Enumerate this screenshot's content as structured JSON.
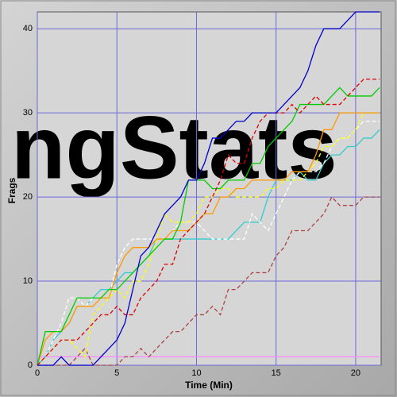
{
  "chart_data": {
    "type": "line",
    "watermark": "ngStats",
    "xlabel": "Time (Min)",
    "ylabel": "Frags",
    "xlim": [
      0,
      21.6
    ],
    "ylim": [
      0,
      42
    ],
    "xticks": [
      0,
      5,
      10,
      15,
      20
    ],
    "yticks": [
      0,
      10,
      20,
      30,
      40
    ],
    "grid": true,
    "x": [
      0,
      0.5,
      1,
      1.5,
      2,
      2.5,
      3,
      3.5,
      4,
      4.5,
      5,
      5.5,
      6,
      6.5,
      7,
      7.5,
      8,
      8.5,
      9,
      9.5,
      10,
      10.5,
      11,
      11.5,
      12,
      12.5,
      13,
      13.5,
      14,
      14.5,
      15,
      15.5,
      16,
      16.5,
      17,
      17.5,
      18,
      18.5,
      19,
      19.5,
      20,
      20.5,
      21,
      21.5
    ],
    "series": [
      {
        "color": "#ff88ff",
        "dash": false,
        "values": [
          1,
          1,
          1,
          1,
          1,
          1,
          1,
          1,
          1,
          1,
          1,
          1,
          1,
          1,
          1,
          1,
          1,
          1,
          1,
          1,
          1,
          1,
          1,
          1,
          1,
          1,
          1,
          1,
          1,
          1,
          1,
          1,
          1,
          1,
          1,
          1,
          1,
          1,
          1,
          1,
          1,
          1,
          1,
          1
        ]
      },
      {
        "color": "#aa4444",
        "dash": true,
        "values": [
          0,
          0,
          0,
          0,
          0,
          1,
          2,
          0,
          0,
          0,
          0,
          1,
          1,
          2,
          1,
          2,
          3,
          4,
          4,
          5,
          6,
          6,
          7,
          6,
          9,
          9,
          10,
          11,
          11,
          11,
          13,
          14,
          16,
          16,
          16,
          17,
          18,
          20,
          19,
          19,
          19,
          20,
          20,
          20
        ]
      },
      {
        "color": "#33cccc",
        "dash": false,
        "values": [
          0,
          1,
          3,
          4,
          5,
          7,
          7,
          8,
          9,
          9,
          10,
          11,
          11,
          12,
          13,
          15,
          15,
          15,
          15,
          15,
          15,
          15,
          15,
          15,
          15,
          16,
          17,
          17,
          17,
          20,
          22,
          22,
          22,
          23,
          22,
          22,
          24,
          25,
          25,
          26,
          26,
          27,
          27,
          28
        ]
      },
      {
        "color": "#ffffff",
        "dash": true,
        "values": [
          0,
          1,
          3,
          5,
          8,
          8,
          7,
          8,
          8,
          8,
          12,
          14,
          15,
          15,
          15,
          15,
          15,
          16,
          17,
          17,
          17,
          16,
          15,
          15,
          15,
          15,
          15,
          18,
          17,
          16,
          18,
          20,
          22,
          23,
          23,
          23,
          24,
          26,
          27,
          27,
          28,
          29,
          29,
          29
        ]
      },
      {
        "color": "#ffff00",
        "dash": true,
        "values": [
          0,
          1,
          2,
          3,
          3,
          2,
          1,
          6,
          7,
          8,
          9,
          8,
          10,
          10,
          12,
          15,
          18,
          17,
          17,
          17,
          18,
          20,
          20,
          21,
          21,
          20,
          20,
          20,
          20,
          21,
          21,
          22,
          22,
          22,
          23,
          24,
          26,
          26,
          27,
          27,
          28,
          30,
          30,
          30
        ]
      },
      {
        "color": "#ff9900",
        "dash": false,
        "values": [
          0,
          3,
          4,
          4,
          5,
          7,
          7,
          7,
          8,
          8,
          11,
          13,
          14,
          14,
          14,
          15,
          15,
          16,
          16,
          16,
          17,
          18,
          18,
          20,
          20,
          21,
          21,
          22,
          22,
          22,
          22,
          22,
          23,
          23,
          23,
          25,
          28,
          28,
          30,
          30,
          30,
          30,
          30,
          30
        ]
      },
      {
        "color": "#00cc00",
        "dash": false,
        "values": [
          0,
          4,
          4,
          4,
          6,
          8,
          8,
          8,
          8,
          9,
          9,
          10,
          11,
          12,
          13,
          14,
          15,
          15,
          17,
          22,
          22,
          22,
          21,
          21,
          22,
          22,
          22,
          24,
          24,
          26,
          27,
          28,
          29,
          31,
          31,
          31,
          31,
          32,
          33,
          32,
          32,
          32,
          32,
          33
        ]
      },
      {
        "color": "#dd0000",
        "dash": true,
        "values": [
          0,
          1,
          2,
          3,
          3,
          3,
          4,
          5,
          6,
          6,
          7,
          6,
          6,
          8,
          9,
          10,
          12,
          12,
          15,
          16,
          17,
          18,
          20,
          22,
          25,
          24,
          24,
          27,
          29,
          30,
          30,
          30,
          31,
          30,
          31,
          32,
          31,
          31,
          31,
          32,
          33,
          34,
          34,
          34
        ]
      },
      {
        "color": "#0000cc",
        "dash": false,
        "values": [
          0,
          0,
          0,
          1,
          0,
          0,
          0,
          0,
          1,
          2,
          3,
          5,
          9,
          13,
          14,
          16,
          18,
          19,
          20,
          22,
          22,
          24,
          27,
          27,
          28,
          29,
          29,
          30,
          30,
          30,
          30,
          31,
          32,
          33,
          35,
          38,
          40,
          40,
          40,
          41,
          42,
          42,
          42,
          42
        ]
      }
    ]
  }
}
